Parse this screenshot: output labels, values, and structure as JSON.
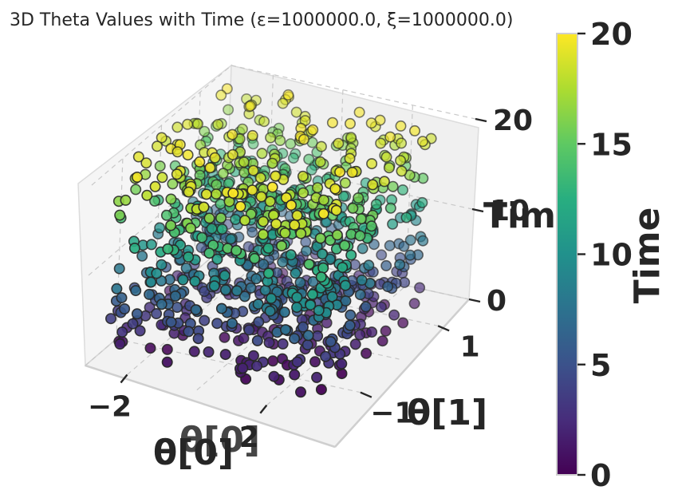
{
  "chart_data": {
    "type": "scatter",
    "projection": "3d",
    "title": "3D Theta Values with Time (ε=1000000.0, ξ=1000000.0)",
    "xlabel": "θ[0]",
    "ylabel": "θ[1]",
    "zlabel": "Time",
    "x_tick_labels": [
      "−2",
      "2"
    ],
    "y_tick_labels": [
      "−1",
      "1"
    ],
    "z_tick_labels": [
      "0",
      "10",
      "20"
    ],
    "xlim": [
      -3.2,
      3.8
    ],
    "ylim": [
      -1.8,
      1.8
    ],
    "zlim": [
      0,
      20
    ],
    "colorbar": {
      "label": "Time",
      "colormap": "viridis",
      "range": [
        0,
        20
      ],
      "tick_labels": [
        "0",
        "5",
        "10",
        "15",
        "20"
      ]
    },
    "series": [
      {
        "marker": "circle",
        "edge_color": "#262626",
        "n_points": 1000,
        "x_range": [
          -3.14,
          3.14
        ],
        "y_range": [
          -1.5,
          1.5
        ],
        "time_range": [
          0,
          20
        ],
        "color_by": "time"
      }
    ],
    "grid": true,
    "legend": "none",
    "colors": {
      "pane": "#f3f3f3",
      "pane_edge": "#d9d9d9",
      "text": "#262626"
    }
  }
}
